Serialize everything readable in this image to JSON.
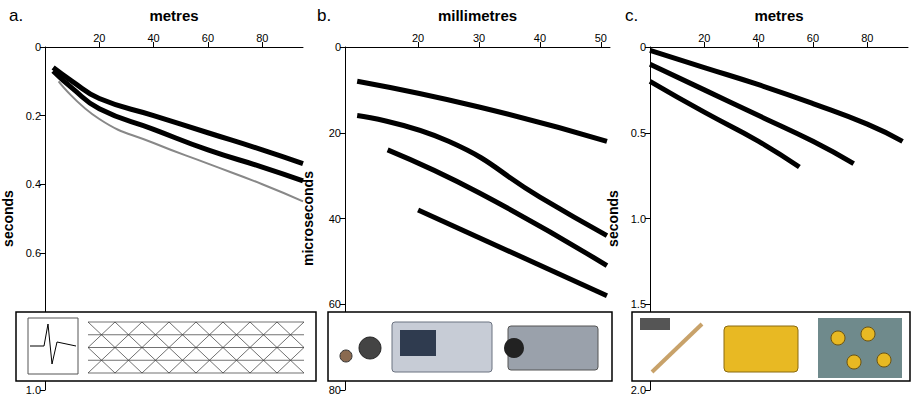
{
  "chart_data": [
    {
      "type": "line",
      "title": "a.",
      "x_label": "metres",
      "y_label": "seconds",
      "xlim": [
        0,
        95
      ],
      "xticks": [
        20,
        40,
        60,
        80
      ],
      "ylim": [
        0,
        1
      ],
      "yticks": [
        0,
        0.2,
        0.4,
        0.6,
        {
          "value": 1,
          "label": "1.0"
        }
      ],
      "grid": false,
      "series": [
        {
          "color": "#000000",
          "x": [
            3,
            10,
            20,
            40,
            60,
            80,
            95
          ],
          "values": [
            0.06,
            0.1,
            0.15,
            0.2,
            0.25,
            0.3,
            0.34
          ]
        },
        {
          "color": "#000000",
          "x": [
            3,
            10,
            20,
            40,
            60,
            80,
            95
          ],
          "values": [
            0.07,
            0.12,
            0.18,
            0.24,
            0.3,
            0.35,
            0.39
          ]
        },
        {
          "color": "#888888",
          "x": [
            5,
            20,
            40,
            60,
            80,
            95
          ],
          "values": [
            0.1,
            0.21,
            0.28,
            0.34,
            0.4,
            0.45
          ]
        }
      ]
    },
    {
      "type": "line",
      "title": "b.",
      "x_label": "millimetres",
      "y_label": "microseconds",
      "xlim": [
        8,
        51.5
      ],
      "xticks": [
        20,
        30,
        40,
        50
      ],
      "ylim": [
        0,
        80
      ],
      "yticks": [
        0,
        20,
        40,
        60,
        80
      ],
      "grid": false,
      "series": [
        {
          "color": "#000000",
          "x": [
            10,
            30,
            51
          ],
          "values": [
            8,
            14,
            22
          ]
        },
        {
          "color": "#000000",
          "x": [
            10,
            25,
            40,
            51
          ],
          "values": [
            16,
            22,
            35,
            44
          ]
        },
        {
          "color": "#000000",
          "x": [
            15,
            30,
            51
          ],
          "values": [
            24,
            34,
            51
          ]
        },
        {
          "color": "#000000",
          "x": [
            20,
            51
          ],
          "values": [
            38,
            58
          ]
        }
      ]
    },
    {
      "type": "line",
      "title": "c.",
      "x_label": "metres",
      "y_label": "seconds",
      "xlim": [
        0,
        95
      ],
      "xticks": [
        20,
        40,
        60,
        80
      ],
      "ylim": [
        0,
        2
      ],
      "yticks": [
        0,
        0.5,
        {
          "value": 1,
          "label": "1.0"
        },
        1.5,
        {
          "value": 2,
          "label": "2.0"
        }
      ],
      "grid": false,
      "series": [
        {
          "color": "#000000",
          "x": [
            0,
            20,
            40,
            60,
            80,
            93
          ],
          "values": [
            0.02,
            0.12,
            0.22,
            0.33,
            0.45,
            0.55
          ]
        },
        {
          "color": "#000000",
          "x": [
            0,
            20,
            40,
            60,
            75
          ],
          "values": [
            0.1,
            0.25,
            0.4,
            0.55,
            0.68
          ]
        },
        {
          "color": "#000000",
          "x": [
            0,
            20,
            40,
            55
          ],
          "values": [
            0.2,
            0.38,
            0.55,
            0.7
          ]
        }
      ]
    }
  ]
}
